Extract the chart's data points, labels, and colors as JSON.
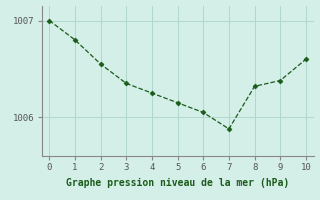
{
  "x": [
    0,
    1,
    2,
    3,
    4,
    5,
    6,
    7,
    8,
    9,
    10
  ],
  "y": [
    1007.0,
    1006.8,
    1006.55,
    1006.35,
    1006.25,
    1006.15,
    1006.05,
    1005.88,
    1006.32,
    1006.38,
    1006.6
  ],
  "xlim": [
    -0.3,
    10.3
  ],
  "ylim": [
    1005.6,
    1007.15
  ],
  "yticks": [
    1006,
    1007
  ],
  "xticks": [
    0,
    1,
    2,
    3,
    4,
    5,
    6,
    7,
    8,
    9,
    10
  ],
  "line_color": "#1a5c1a",
  "marker_color": "#1a5c1a",
  "bg_color": "#d4eee8",
  "grid_color": "#b0d8cc",
  "xlabel": "Graphe pression niveau de la mer (hPa)",
  "xlabel_color": "#1a5c1a",
  "tick_color": "#555555",
  "spine_color": "#888888"
}
